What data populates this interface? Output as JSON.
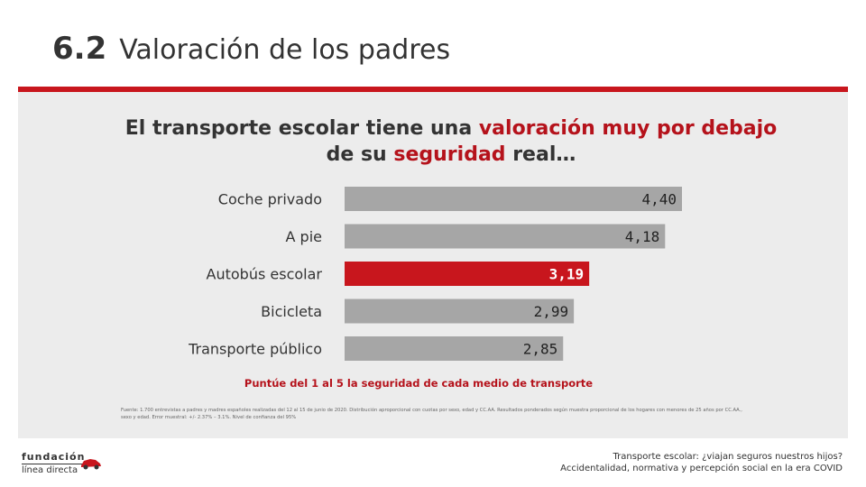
{
  "header": {
    "section_number": "6.2",
    "section_title": "Valoración de los padres"
  },
  "headline": {
    "line1_pre": "El transporte escolar tiene una ",
    "line1_hl": "valoración muy por debajo",
    "line2_pre": "de su ",
    "line2_hl": "seguridad",
    "line2_post": " real…"
  },
  "colors": {
    "accent": "#c8161d",
    "bar_gray": "#a6a6a6",
    "panel": "#ececec"
  },
  "chart_data": {
    "type": "bar",
    "orientation": "horizontal",
    "categories": [
      "Coche privado",
      "A pie",
      "Autobús escolar",
      "Bicicleta",
      "Transporte público"
    ],
    "values": [
      4.4,
      4.18,
      3.19,
      2.99,
      2.85
    ],
    "value_labels": [
      "4,40",
      "4,18",
      "3,19",
      "2,99",
      "2,85"
    ],
    "highlight": "Autobús escolar",
    "xlim": [
      0,
      4.4
    ]
  },
  "note": "Puntúe del 1 al 5 la seguridad de cada medio de transporte",
  "source": "Fuente: 1.700 entrevistas a padres y madres españoles realizadas del 12 al 15 de junio de 2020. Distribución aproporcional con cuotas por sexo, edad y CC.AA. Resultados ponderados según muestra proporcional de los hogares con menores de 25 años por CC.AA., sexo y edad. Error muestral: +/- 2.37% – 3.1%. Nivel de confianza del 95%",
  "logo": {
    "line1": "fundación",
    "line2": "línea directa"
  },
  "footer": {
    "line1": "Transporte escolar: ¿viajan seguros nuestros hijos?",
    "line2": "Accidentalidad, normativa y percepción social en la era COVID"
  }
}
